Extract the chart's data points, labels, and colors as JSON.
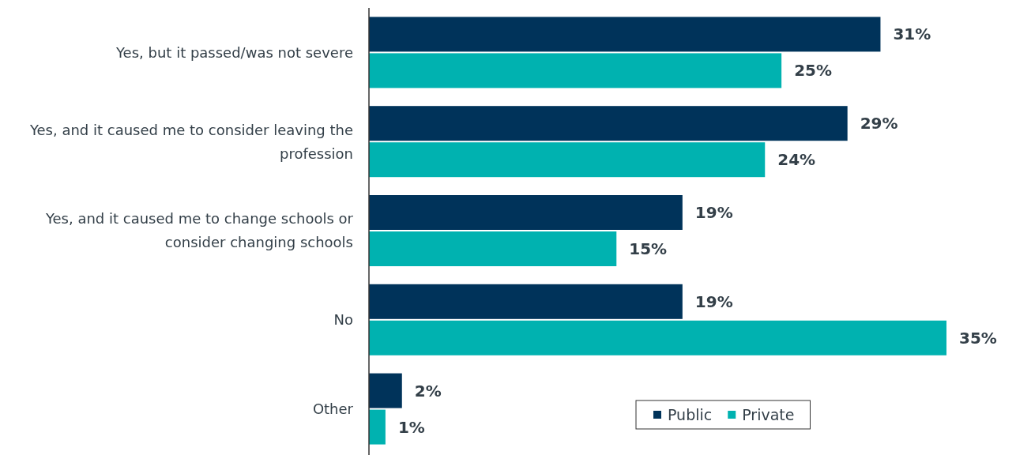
{
  "chart_data": {
    "type": "bar",
    "orientation": "horizontal",
    "categories": [
      "Yes, but it passed/was not severe",
      "Yes, and it caused me to consider leaving the profession",
      "Yes, and it caused me to change schools or consider changing schools",
      "No",
      "Other"
    ],
    "series": [
      {
        "name": "Public",
        "color": "#00335a",
        "values": [
          31,
          29,
          19,
          19,
          2
        ],
        "value_labels": [
          "31%",
          "29%",
          "19%",
          "19%",
          "2%"
        ]
      },
      {
        "name": "Private",
        "color": "#00b2b0",
        "values": [
          25,
          24,
          15,
          35,
          1
        ],
        "value_labels": [
          "25%",
          "24%",
          "15%",
          "35%",
          "1%"
        ]
      }
    ],
    "legend": "bottom right"
  }
}
